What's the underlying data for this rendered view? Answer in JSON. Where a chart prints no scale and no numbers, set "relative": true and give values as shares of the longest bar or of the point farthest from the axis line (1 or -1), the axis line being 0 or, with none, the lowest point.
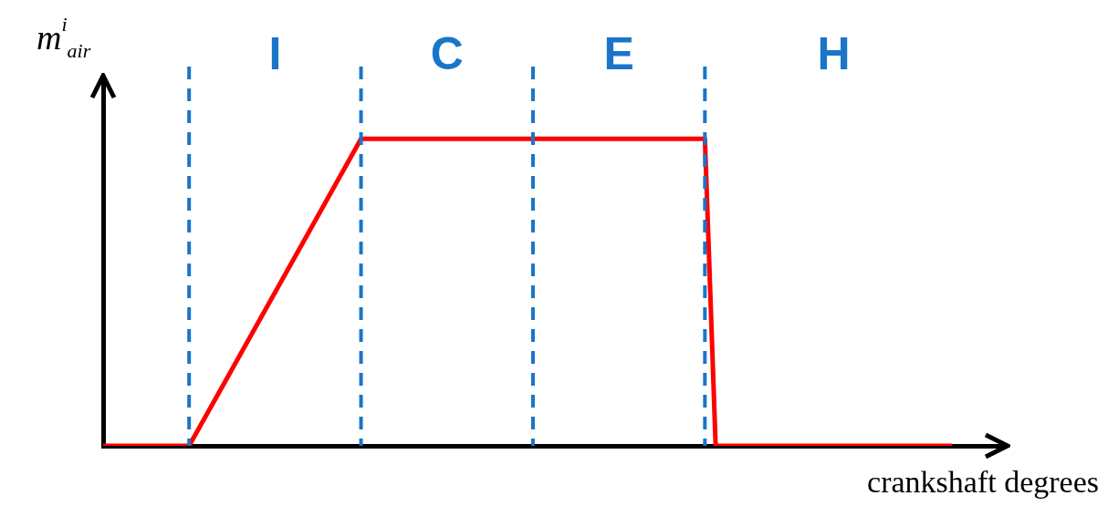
{
  "chart_data": {
    "type": "line",
    "relative": true,
    "xlabel": "crankshaft degrees",
    "ylabel": "m$^{i}$$_{air}$",
    "categories": [
      null,
      null,
      null,
      null,
      null,
      null,
      null,
      null,
      null,
      null,
      null,
      null,
      null,
      null,
      null,
      null,
      null,
      null,
      null,
      null,
      null,
      null,
      null,
      null,
      null,
      null,
      null,
      null,
      null,
      null,
      null,
      null,
      null,
      null,
      null,
      null,
      null,
      null,
      null,
      null,
      null,
      null,
      null,
      null,
      null,
      null,
      null,
      null,
      null,
      null,
      null,
      null,
      null,
      null,
      null,
      null,
      null,
      null,
      null,
      null,
      null,
      null,
      null,
      null,
      null,
      null,
      null,
      null,
      null,
      null,
      null,
      null,
      null,
      null,
      null,
      null,
      null,
      null,
      null,
      null
    ],
    "series": [
      {
        "color": "#ff0000",
        "values": [
          0,
          null,
          null,
          null,
          null,
          null,
          null,
          null,
          0,
          null,
          null,
          null,
          null,
          null,
          null,
          null,
          null,
          null,
          null,
          null,
          null,
          null,
          null,
          null,
          1,
          null,
          null,
          null,
          null,
          null,
          null,
          null,
          null,
          null,
          null,
          null,
          null,
          null,
          null,
          null,
          null,
          null,
          null,
          null,
          null,
          null,
          null,
          null,
          null,
          null,
          null,
          null,
          null,
          null,
          null,
          null,
          1,
          0,
          null,
          null,
          null,
          null,
          null,
          null,
          null,
          null,
          null,
          null,
          null,
          null,
          null,
          null,
          null,
          null,
          null,
          null,
          null,
          null,
          null,
          0
        ]
      }
    ],
    "annotations": [
      "I",
      "C",
      "E",
      "H"
    ],
    "grid": "x",
    "line_style": "solid",
    "legend": false
  }
}
